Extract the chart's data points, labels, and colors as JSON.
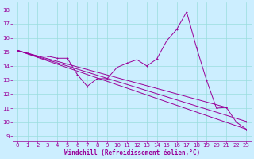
{
  "xlabel": "Windchill (Refroidissement éolien,°C)",
  "bg_color": "#cceeff",
  "line_color": "#990099",
  "grid_color": "#99dddd",
  "x_ticks": [
    0,
    1,
    2,
    3,
    4,
    5,
    6,
    7,
    8,
    9,
    10,
    11,
    12,
    13,
    14,
    15,
    16,
    17,
    18,
    19,
    20,
    21,
    22,
    23
  ],
  "y_ticks": [
    9,
    10,
    11,
    12,
    13,
    14,
    15,
    16,
    17,
    18
  ],
  "xlim": [
    -0.5,
    23.5
  ],
  "ylim": [
    8.7,
    18.5
  ],
  "wiggly": [
    15.1,
    14.9,
    14.7,
    14.7,
    14.55,
    14.55,
    13.4,
    12.55,
    13.1,
    13.1,
    13.9,
    14.2,
    14.45,
    14.0,
    14.5,
    15.8,
    16.6,
    17.85,
    15.3,
    13.0,
    11.0,
    11.05,
    10.0,
    9.5
  ],
  "straight_lines": [
    {
      "x": [
        0,
        23
      ],
      "y": [
        15.1,
        9.5
      ]
    },
    {
      "x": [
        0,
        23
      ],
      "y": [
        15.1,
        10.05
      ]
    },
    {
      "x": [
        0,
        21
      ],
      "y": [
        15.1,
        11.05
      ]
    }
  ],
  "xlabel_fontsize": 5.5,
  "tick_fontsize": 5.0,
  "lw": 0.7,
  "ms": 2.0,
  "mew": 0.7
}
